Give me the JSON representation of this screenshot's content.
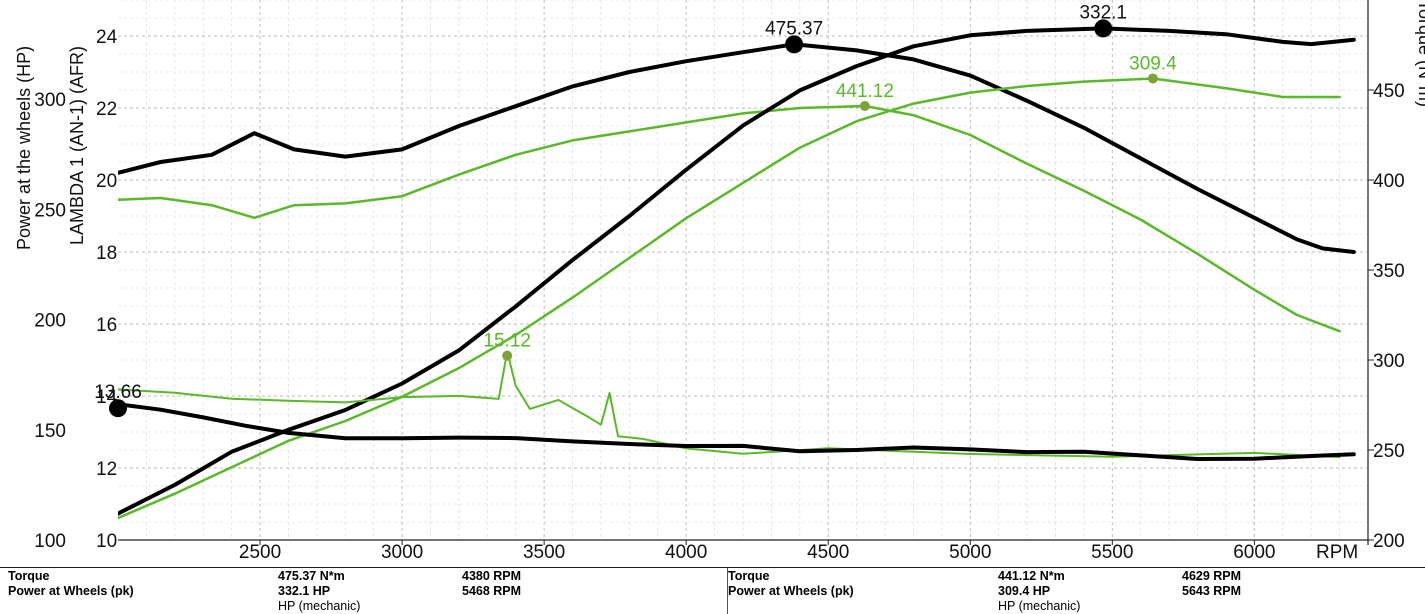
{
  "chart_data": {
    "type": "line",
    "xlabel": "RPM",
    "xlim": [
      2000,
      6400
    ],
    "x_ticks": [
      2500,
      3000,
      3500,
      4000,
      4500,
      5000,
      5500,
      6000
    ],
    "axes": {
      "hp": {
        "label": "Power at the wheels (HP)",
        "range": [
          100,
          345
        ],
        "ticks": [
          100,
          150,
          200,
          250,
          300
        ]
      },
      "afr": {
        "label": "LAMBDA 1 (AN-1) (AFR)",
        "range": [
          10,
          25
        ],
        "ticks": [
          10,
          12,
          14,
          16,
          18,
          20,
          22,
          24
        ]
      },
      "torque": {
        "label": "Torque (N*m)",
        "range": [
          200,
          500
        ],
        "ticks": [
          200,
          250,
          300,
          350,
          400,
          450
        ]
      }
    },
    "grid": true,
    "colors": {
      "run1": "#000000",
      "run2": "#5bb82a",
      "marker2": "#7ea23a"
    },
    "series": [
      {
        "axis": "torque",
        "run": 1,
        "width": 4,
        "points": [
          [
            2000,
            404
          ],
          [
            2150,
            410
          ],
          [
            2330,
            414
          ],
          [
            2480,
            426
          ],
          [
            2620,
            417
          ],
          [
            2800,
            413
          ],
          [
            3000,
            417
          ],
          [
            3200,
            430
          ],
          [
            3400,
            441
          ],
          [
            3600,
            452
          ],
          [
            3800,
            460
          ],
          [
            4000,
            466
          ],
          [
            4200,
            471
          ],
          [
            4380,
            475.37
          ],
          [
            4600,
            472
          ],
          [
            4800,
            467
          ],
          [
            5000,
            458
          ],
          [
            5200,
            444
          ],
          [
            5400,
            429
          ],
          [
            5600,
            412
          ],
          [
            5800,
            395
          ],
          [
            6000,
            379
          ],
          [
            6150,
            367
          ],
          [
            6240,
            362
          ],
          [
            6350,
            360
          ]
        ]
      },
      {
        "axis": "torque",
        "run": 2,
        "width": 2.5,
        "points": [
          [
            2000,
            389
          ],
          [
            2150,
            390
          ],
          [
            2330,
            386
          ],
          [
            2480,
            379
          ],
          [
            2620,
            386
          ],
          [
            2800,
            387
          ],
          [
            3000,
            391
          ],
          [
            3200,
            403
          ],
          [
            3400,
            414
          ],
          [
            3600,
            422
          ],
          [
            3800,
            427
          ],
          [
            4000,
            432
          ],
          [
            4200,
            437
          ],
          [
            4400,
            440
          ],
          [
            4629,
            441.12
          ],
          [
            4800,
            436
          ],
          [
            5000,
            425
          ],
          [
            5200,
            409
          ],
          [
            5400,
            394
          ],
          [
            5600,
            378
          ],
          [
            5800,
            359
          ],
          [
            6000,
            339
          ],
          [
            6150,
            325
          ],
          [
            6300,
            316
          ]
        ]
      },
      {
        "axis": "hp",
        "run": 1,
        "width": 4,
        "points": [
          [
            2000,
            112
          ],
          [
            2200,
            125
          ],
          [
            2400,
            140
          ],
          [
            2600,
            150
          ],
          [
            2800,
            159
          ],
          [
            3000,
            171
          ],
          [
            3200,
            186
          ],
          [
            3400,
            206
          ],
          [
            3600,
            227
          ],
          [
            3800,
            247
          ],
          [
            4000,
            268
          ],
          [
            4200,
            288
          ],
          [
            4400,
            304
          ],
          [
            4600,
            315
          ],
          [
            4800,
            324
          ],
          [
            5000,
            329
          ],
          [
            5200,
            331
          ],
          [
            5468,
            332.1
          ],
          [
            5700,
            331
          ],
          [
            5900,
            329.5
          ],
          [
            6100,
            326
          ],
          [
            6200,
            325
          ],
          [
            6350,
            327
          ]
        ]
      },
      {
        "axis": "hp",
        "run": 2,
        "width": 2.5,
        "points": [
          [
            2000,
            110
          ],
          [
            2200,
            121
          ],
          [
            2400,
            133
          ],
          [
            2600,
            145
          ],
          [
            2800,
            154
          ],
          [
            3000,
            165
          ],
          [
            3200,
            178
          ],
          [
            3400,
            193
          ],
          [
            3600,
            210
          ],
          [
            3800,
            228
          ],
          [
            4000,
            246
          ],
          [
            4200,
            262
          ],
          [
            4400,
            278
          ],
          [
            4600,
            290
          ],
          [
            4800,
            298
          ],
          [
            5000,
            303
          ],
          [
            5200,
            306
          ],
          [
            5400,
            308
          ],
          [
            5643,
            309.4
          ],
          [
            5900,
            305
          ],
          [
            6100,
            301
          ],
          [
            6300,
            301
          ]
        ]
      },
      {
        "axis": "afr",
        "run": 2,
        "width": 2,
        "points": [
          [
            2000,
            14.3
          ],
          [
            2200,
            14.2
          ],
          [
            2400,
            14
          ],
          [
            2600,
            13.9
          ],
          [
            2800,
            13.8
          ],
          [
            3000,
            13.9
          ],
          [
            3200,
            13.9
          ],
          [
            3340,
            13.8
          ],
          [
            3370,
            15.12
          ],
          [
            3400,
            14.2
          ],
          [
            3450,
            13.6
          ],
          [
            3550,
            13.9
          ],
          [
            3650,
            13.5
          ],
          [
            3700,
            13.3
          ],
          [
            3730,
            14.2
          ],
          [
            3760,
            13
          ],
          [
            3850,
            12.9
          ],
          [
            4000,
            12.6
          ],
          [
            4200,
            12.4
          ],
          [
            4500,
            12.5
          ],
          [
            5000,
            12.3
          ],
          [
            5500,
            12.2
          ],
          [
            6000,
            12.3
          ],
          [
            6300,
            12.2
          ]
        ]
      },
      {
        "axis": "afr",
        "run": 1,
        "width": 4,
        "points": [
          [
            2000,
            13.66
          ],
          [
            2150,
            13.5
          ],
          [
            2300,
            13.3
          ],
          [
            2450,
            13.1
          ],
          [
            2600,
            12.95
          ],
          [
            2800,
            12.85
          ],
          [
            3000,
            12.9
          ],
          [
            3200,
            12.95
          ],
          [
            3400,
            12.95
          ],
          [
            3600,
            12.85
          ],
          [
            3800,
            12.75
          ],
          [
            4000,
            12.65
          ],
          [
            4200,
            12.6
          ],
          [
            4400,
            12.4
          ],
          [
            4600,
            12.4
          ],
          [
            4800,
            12.45
          ],
          [
            5000,
            12.4
          ],
          [
            5200,
            12.35
          ],
          [
            5400,
            12.4
          ],
          [
            5600,
            12.35
          ],
          [
            5800,
            12.3
          ],
          [
            6000,
            12.35
          ],
          [
            6200,
            12.45
          ],
          [
            6350,
            12.5
          ]
        ]
      }
    ],
    "annotations": [
      {
        "text": "475.37",
        "x": 4380,
        "y": 475.37,
        "axis": "torque",
        "run": 1
      },
      {
        "text": "332.1",
        "x": 5468,
        "y": 332.1,
        "axis": "hp",
        "run": 1
      },
      {
        "text": "13.66",
        "x": 2000,
        "y": 13.66,
        "axis": "afr",
        "run": 1
      },
      {
        "text": "441.12",
        "x": 4629,
        "y": 441.12,
        "axis": "torque",
        "run": 2
      },
      {
        "text": "309.4",
        "x": 5643,
        "y": 309.4,
        "axis": "hp",
        "run": 2
      },
      {
        "text": "15.12",
        "x": 3370,
        "y": 15.12,
        "axis": "afr",
        "run": 2
      }
    ]
  },
  "summary": {
    "left": {
      "rows": [
        {
          "label": "Torque",
          "value": "475.37 N*m",
          "rpm": "4380 RPM"
        },
        {
          "label": "Power at Wheels (pk)",
          "value": "332.1 HP",
          "rpm": "5468 RPM"
        }
      ],
      "note": "HP (mechanic)"
    },
    "right": {
      "rows": [
        {
          "label": "Torque",
          "value": "441.12 N*m",
          "rpm": "4629 RPM"
        },
        {
          "label": "Power at Wheels (pk)",
          "value": "309.4 HP",
          "rpm": "5643 RPM"
        }
      ],
      "note": "HP (mechanic)"
    }
  }
}
